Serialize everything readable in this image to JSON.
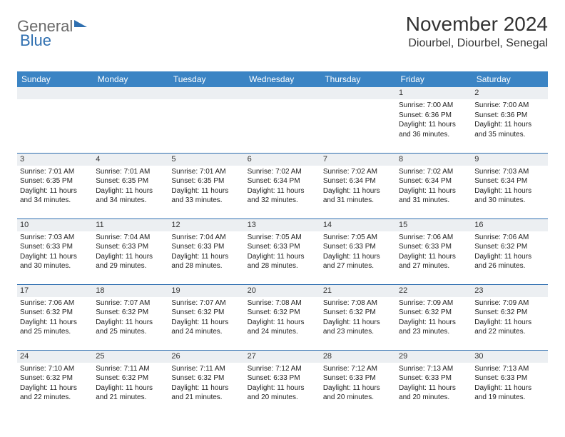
{
  "logo": {
    "part1": "General",
    "part2": "Blue"
  },
  "header": {
    "month_title": "November 2024",
    "location": "Diourbel, Diourbel, Senegal"
  },
  "colors": {
    "header_bg": "#3b84c4",
    "header_text": "#ffffff",
    "daynum_bg": "#eceff2",
    "border": "#2f6fb0",
    "page_bg": "#ffffff",
    "logo_gray": "#6a6a6a",
    "logo_blue": "#2f6fb0"
  },
  "weekdays": [
    "Sunday",
    "Monday",
    "Tuesday",
    "Wednesday",
    "Thursday",
    "Friday",
    "Saturday"
  ],
  "weeks": [
    [
      {
        "blank": true
      },
      {
        "blank": true
      },
      {
        "blank": true
      },
      {
        "blank": true
      },
      {
        "blank": true
      },
      {
        "day": "1",
        "sunrise": "Sunrise: 7:00 AM",
        "sunset": "Sunset: 6:36 PM",
        "daylight": "Daylight: 11 hours and 36 minutes."
      },
      {
        "day": "2",
        "sunrise": "Sunrise: 7:00 AM",
        "sunset": "Sunset: 6:36 PM",
        "daylight": "Daylight: 11 hours and 35 minutes."
      }
    ],
    [
      {
        "day": "3",
        "sunrise": "Sunrise: 7:01 AM",
        "sunset": "Sunset: 6:35 PM",
        "daylight": "Daylight: 11 hours and 34 minutes."
      },
      {
        "day": "4",
        "sunrise": "Sunrise: 7:01 AM",
        "sunset": "Sunset: 6:35 PM",
        "daylight": "Daylight: 11 hours and 34 minutes."
      },
      {
        "day": "5",
        "sunrise": "Sunrise: 7:01 AM",
        "sunset": "Sunset: 6:35 PM",
        "daylight": "Daylight: 11 hours and 33 minutes."
      },
      {
        "day": "6",
        "sunrise": "Sunrise: 7:02 AM",
        "sunset": "Sunset: 6:34 PM",
        "daylight": "Daylight: 11 hours and 32 minutes."
      },
      {
        "day": "7",
        "sunrise": "Sunrise: 7:02 AM",
        "sunset": "Sunset: 6:34 PM",
        "daylight": "Daylight: 11 hours and 31 minutes."
      },
      {
        "day": "8",
        "sunrise": "Sunrise: 7:02 AM",
        "sunset": "Sunset: 6:34 PM",
        "daylight": "Daylight: 11 hours and 31 minutes."
      },
      {
        "day": "9",
        "sunrise": "Sunrise: 7:03 AM",
        "sunset": "Sunset: 6:34 PM",
        "daylight": "Daylight: 11 hours and 30 minutes."
      }
    ],
    [
      {
        "day": "10",
        "sunrise": "Sunrise: 7:03 AM",
        "sunset": "Sunset: 6:33 PM",
        "daylight": "Daylight: 11 hours and 30 minutes."
      },
      {
        "day": "11",
        "sunrise": "Sunrise: 7:04 AM",
        "sunset": "Sunset: 6:33 PM",
        "daylight": "Daylight: 11 hours and 29 minutes."
      },
      {
        "day": "12",
        "sunrise": "Sunrise: 7:04 AM",
        "sunset": "Sunset: 6:33 PM",
        "daylight": "Daylight: 11 hours and 28 minutes."
      },
      {
        "day": "13",
        "sunrise": "Sunrise: 7:05 AM",
        "sunset": "Sunset: 6:33 PM",
        "daylight": "Daylight: 11 hours and 28 minutes."
      },
      {
        "day": "14",
        "sunrise": "Sunrise: 7:05 AM",
        "sunset": "Sunset: 6:33 PM",
        "daylight": "Daylight: 11 hours and 27 minutes."
      },
      {
        "day": "15",
        "sunrise": "Sunrise: 7:06 AM",
        "sunset": "Sunset: 6:33 PM",
        "daylight": "Daylight: 11 hours and 27 minutes."
      },
      {
        "day": "16",
        "sunrise": "Sunrise: 7:06 AM",
        "sunset": "Sunset: 6:32 PM",
        "daylight": "Daylight: 11 hours and 26 minutes."
      }
    ],
    [
      {
        "day": "17",
        "sunrise": "Sunrise: 7:06 AM",
        "sunset": "Sunset: 6:32 PM",
        "daylight": "Daylight: 11 hours and 25 minutes."
      },
      {
        "day": "18",
        "sunrise": "Sunrise: 7:07 AM",
        "sunset": "Sunset: 6:32 PM",
        "daylight": "Daylight: 11 hours and 25 minutes."
      },
      {
        "day": "19",
        "sunrise": "Sunrise: 7:07 AM",
        "sunset": "Sunset: 6:32 PM",
        "daylight": "Daylight: 11 hours and 24 minutes."
      },
      {
        "day": "20",
        "sunrise": "Sunrise: 7:08 AM",
        "sunset": "Sunset: 6:32 PM",
        "daylight": "Daylight: 11 hours and 24 minutes."
      },
      {
        "day": "21",
        "sunrise": "Sunrise: 7:08 AM",
        "sunset": "Sunset: 6:32 PM",
        "daylight": "Daylight: 11 hours and 23 minutes."
      },
      {
        "day": "22",
        "sunrise": "Sunrise: 7:09 AM",
        "sunset": "Sunset: 6:32 PM",
        "daylight": "Daylight: 11 hours and 23 minutes."
      },
      {
        "day": "23",
        "sunrise": "Sunrise: 7:09 AM",
        "sunset": "Sunset: 6:32 PM",
        "daylight": "Daylight: 11 hours and 22 minutes."
      }
    ],
    [
      {
        "day": "24",
        "sunrise": "Sunrise: 7:10 AM",
        "sunset": "Sunset: 6:32 PM",
        "daylight": "Daylight: 11 hours and 22 minutes."
      },
      {
        "day": "25",
        "sunrise": "Sunrise: 7:11 AM",
        "sunset": "Sunset: 6:32 PM",
        "daylight": "Daylight: 11 hours and 21 minutes."
      },
      {
        "day": "26",
        "sunrise": "Sunrise: 7:11 AM",
        "sunset": "Sunset: 6:32 PM",
        "daylight": "Daylight: 11 hours and 21 minutes."
      },
      {
        "day": "27",
        "sunrise": "Sunrise: 7:12 AM",
        "sunset": "Sunset: 6:33 PM",
        "daylight": "Daylight: 11 hours and 20 minutes."
      },
      {
        "day": "28",
        "sunrise": "Sunrise: 7:12 AM",
        "sunset": "Sunset: 6:33 PM",
        "daylight": "Daylight: 11 hours and 20 minutes."
      },
      {
        "day": "29",
        "sunrise": "Sunrise: 7:13 AM",
        "sunset": "Sunset: 6:33 PM",
        "daylight": "Daylight: 11 hours and 20 minutes."
      },
      {
        "day": "30",
        "sunrise": "Sunrise: 7:13 AM",
        "sunset": "Sunset: 6:33 PM",
        "daylight": "Daylight: 11 hours and 19 minutes."
      }
    ]
  ]
}
